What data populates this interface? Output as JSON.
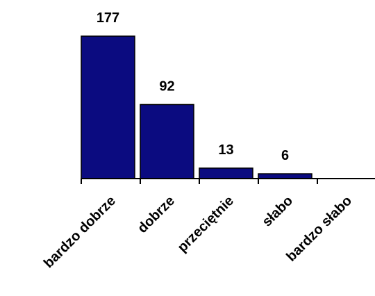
{
  "chart_data": {
    "type": "bar",
    "categories": [
      "bardzo dobrze",
      "dobrze",
      "przeciętnie",
      "słabo",
      "bardzo słabo"
    ],
    "values": [
      177,
      92,
      13,
      6,
      0
    ],
    "data_labels": [
      "177",
      "92",
      "13",
      "6",
      ""
    ],
    "title": "",
    "xlabel": "",
    "ylabel": "",
    "ylim": [
      0,
      177
    ],
    "grid": false,
    "legend": "none",
    "bar_color": "#0b0b80"
  }
}
